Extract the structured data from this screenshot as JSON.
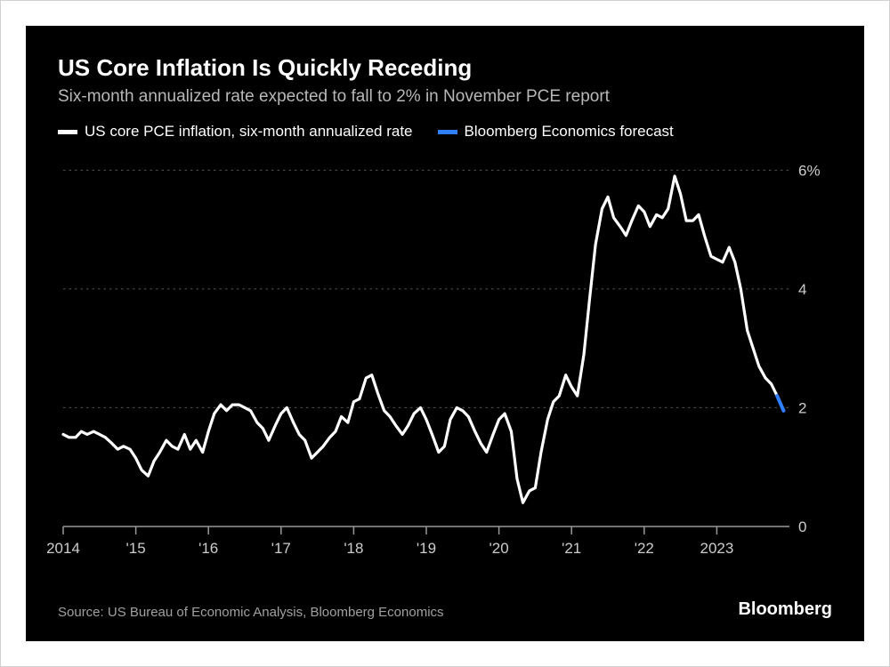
{
  "title": "US Core Inflation Is Quickly Receding",
  "subtitle": "Six-month annualized rate expected to fall to 2% in November PCE report",
  "legend": [
    {
      "label": "US core PCE inflation, six-month annualized rate",
      "color": "#ffffff"
    },
    {
      "label": "Bloomberg Economics forecast",
      "color": "#2f7fff"
    }
  ],
  "source": "Source: US Bureau of Economic Analysis, Bloomberg Economics",
  "brand": "Bloomberg",
  "chart": {
    "type": "line",
    "background_color": "#000000",
    "grid_color": "#555555",
    "axis_color": "#999999",
    "tick_label_color": "#cccccc",
    "tick_fontsize": 17,
    "ylim": [
      -0.3,
      6.2
    ],
    "xlim": [
      2014,
      2024
    ],
    "y_ticks": [
      0,
      2,
      4,
      6
    ],
    "y_tick_labels": [
      "0",
      "2",
      "4",
      "6%"
    ],
    "x_ticks": [
      2014,
      2015,
      2016,
      2017,
      2018,
      2019,
      2020,
      2021,
      2022,
      2023
    ],
    "x_tick_labels": [
      "2014",
      "'15",
      "'16",
      "'17",
      "'18",
      "'19",
      "'20",
      "'21",
      "'22",
      "2023"
    ],
    "line_width_main": 3.2,
    "line_width_forecast": 4,
    "series": [
      {
        "name": "core_pce",
        "color": "#ffffff",
        "x": [
          2014.0,
          2014.08,
          2014.17,
          2014.25,
          2014.33,
          2014.42,
          2014.5,
          2014.58,
          2014.67,
          2014.75,
          2014.83,
          2014.92,
          2015.0,
          2015.08,
          2015.17,
          2015.25,
          2015.33,
          2015.42,
          2015.5,
          2015.58,
          2015.67,
          2015.75,
          2015.83,
          2015.92,
          2016.0,
          2016.08,
          2016.17,
          2016.25,
          2016.33,
          2016.42,
          2016.5,
          2016.58,
          2016.67,
          2016.75,
          2016.83,
          2016.92,
          2017.0,
          2017.08,
          2017.17,
          2017.25,
          2017.33,
          2017.42,
          2017.5,
          2017.58,
          2017.67,
          2017.75,
          2017.83,
          2017.92,
          2018.0,
          2018.08,
          2018.17,
          2018.25,
          2018.33,
          2018.42,
          2018.5,
          2018.58,
          2018.67,
          2018.75,
          2018.83,
          2018.92,
          2019.0,
          2019.08,
          2019.17,
          2019.25,
          2019.33,
          2019.42,
          2019.5,
          2019.58,
          2019.67,
          2019.75,
          2019.83,
          2019.92,
          2020.0,
          2020.08,
          2020.17,
          2020.25,
          2020.33,
          2020.42,
          2020.5,
          2020.58,
          2020.67,
          2020.75,
          2020.83,
          2020.92,
          2021.0,
          2021.08,
          2021.17,
          2021.25,
          2021.33,
          2021.42,
          2021.5,
          2021.58,
          2021.67,
          2021.75,
          2021.83,
          2021.92,
          2022.0,
          2022.08,
          2022.17,
          2022.25,
          2022.33,
          2022.42,
          2022.5,
          2022.58,
          2022.67,
          2022.75,
          2022.83,
          2022.92,
          2023.0,
          2023.08,
          2023.17,
          2023.25,
          2023.33,
          2023.42,
          2023.5,
          2023.58,
          2023.67,
          2023.75,
          2023.83
        ],
        "y": [
          1.55,
          1.5,
          1.5,
          1.6,
          1.55,
          1.6,
          1.55,
          1.5,
          1.4,
          1.3,
          1.35,
          1.3,
          1.15,
          0.95,
          0.85,
          1.1,
          1.25,
          1.45,
          1.35,
          1.3,
          1.55,
          1.3,
          1.45,
          1.25,
          1.6,
          1.9,
          2.05,
          1.95,
          2.05,
          2.05,
          2.0,
          1.95,
          1.75,
          1.65,
          1.45,
          1.7,
          1.9,
          2.0,
          1.75,
          1.55,
          1.45,
          1.15,
          1.25,
          1.35,
          1.5,
          1.6,
          1.85,
          1.75,
          2.1,
          2.15,
          2.5,
          2.55,
          2.25,
          1.95,
          1.85,
          1.7,
          1.55,
          1.7,
          1.9,
          2.0,
          1.8,
          1.55,
          1.25,
          1.35,
          1.8,
          2.0,
          1.95,
          1.85,
          1.6,
          1.4,
          1.25,
          1.55,
          1.8,
          1.9,
          1.6,
          0.8,
          0.4,
          0.6,
          0.65,
          1.25,
          1.8,
          2.1,
          2.2,
          2.55,
          2.35,
          2.2,
          2.9,
          3.85,
          4.75,
          5.35,
          5.55,
          5.2,
          5.05,
          4.9,
          5.15,
          5.4,
          5.3,
          5.05,
          5.25,
          5.2,
          5.35,
          5.9,
          5.6,
          5.15,
          5.15,
          5.25,
          4.9,
          4.55,
          4.5,
          4.45,
          4.7,
          4.45,
          4.0,
          3.3,
          3.0,
          2.7,
          2.5,
          2.4,
          2.2
        ]
      },
      {
        "name": "forecast",
        "color": "#2f7fff",
        "x": [
          2023.83,
          2023.92
        ],
        "y": [
          2.2,
          1.95
        ]
      }
    ]
  }
}
